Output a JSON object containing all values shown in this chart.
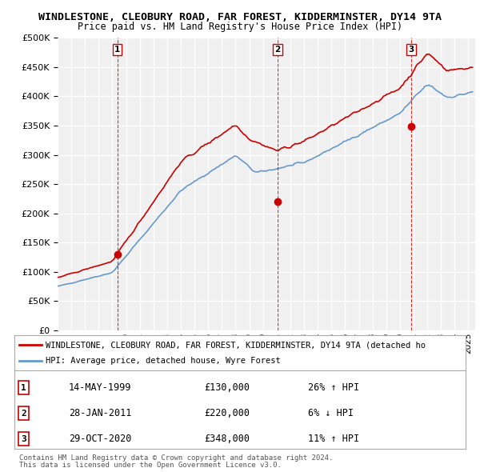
{
  "title": "WINDLESTONE, CLEOBURY ROAD, FAR FOREST, KIDDERMINSTER, DY14 9TA",
  "subtitle": "Price paid vs. HM Land Registry's House Price Index (HPI)",
  "ylabel": "",
  "ylim": [
    0,
    500000
  ],
  "yticks": [
    0,
    50000,
    100000,
    150000,
    200000,
    250000,
    300000,
    350000,
    400000,
    450000,
    500000
  ],
  "background_color": "#ffffff",
  "plot_bg_color": "#f0f0f0",
  "grid_color": "#ffffff",
  "red_line_color": "#cc0000",
  "blue_line_color": "#6699cc",
  "sale_marker_color": "#cc0000",
  "sale_vline_color": "#cc0000",
  "transactions": [
    {
      "label": "1",
      "date_str": "14-MAY-1999",
      "date_x": 1999.37,
      "price": 130000,
      "hpi_pct": "26%",
      "hpi_dir": "↑"
    },
    {
      "label": "2",
      "date_str": "28-JAN-2011",
      "date_x": 2011.07,
      "price": 220000,
      "hpi_pct": "6%",
      "hpi_dir": "↓"
    },
    {
      "label": "3",
      "date_str": "29-OCT-2020",
      "date_x": 2020.83,
      "price": 348000,
      "hpi_pct": "11%",
      "hpi_dir": "↑"
    }
  ],
  "legend_line1": "WINDLESTONE, CLEOBURY ROAD, FAR FOREST, KIDDERMINSTER, DY14 9TA (detached ho",
  "legend_line2": "HPI: Average price, detached house, Wyre Forest",
  "footer1": "Contains HM Land Registry data © Crown copyright and database right 2024.",
  "footer2": "This data is licensed under the Open Government Licence v3.0.",
  "xmin": 1995.0,
  "xmax": 2025.5
}
